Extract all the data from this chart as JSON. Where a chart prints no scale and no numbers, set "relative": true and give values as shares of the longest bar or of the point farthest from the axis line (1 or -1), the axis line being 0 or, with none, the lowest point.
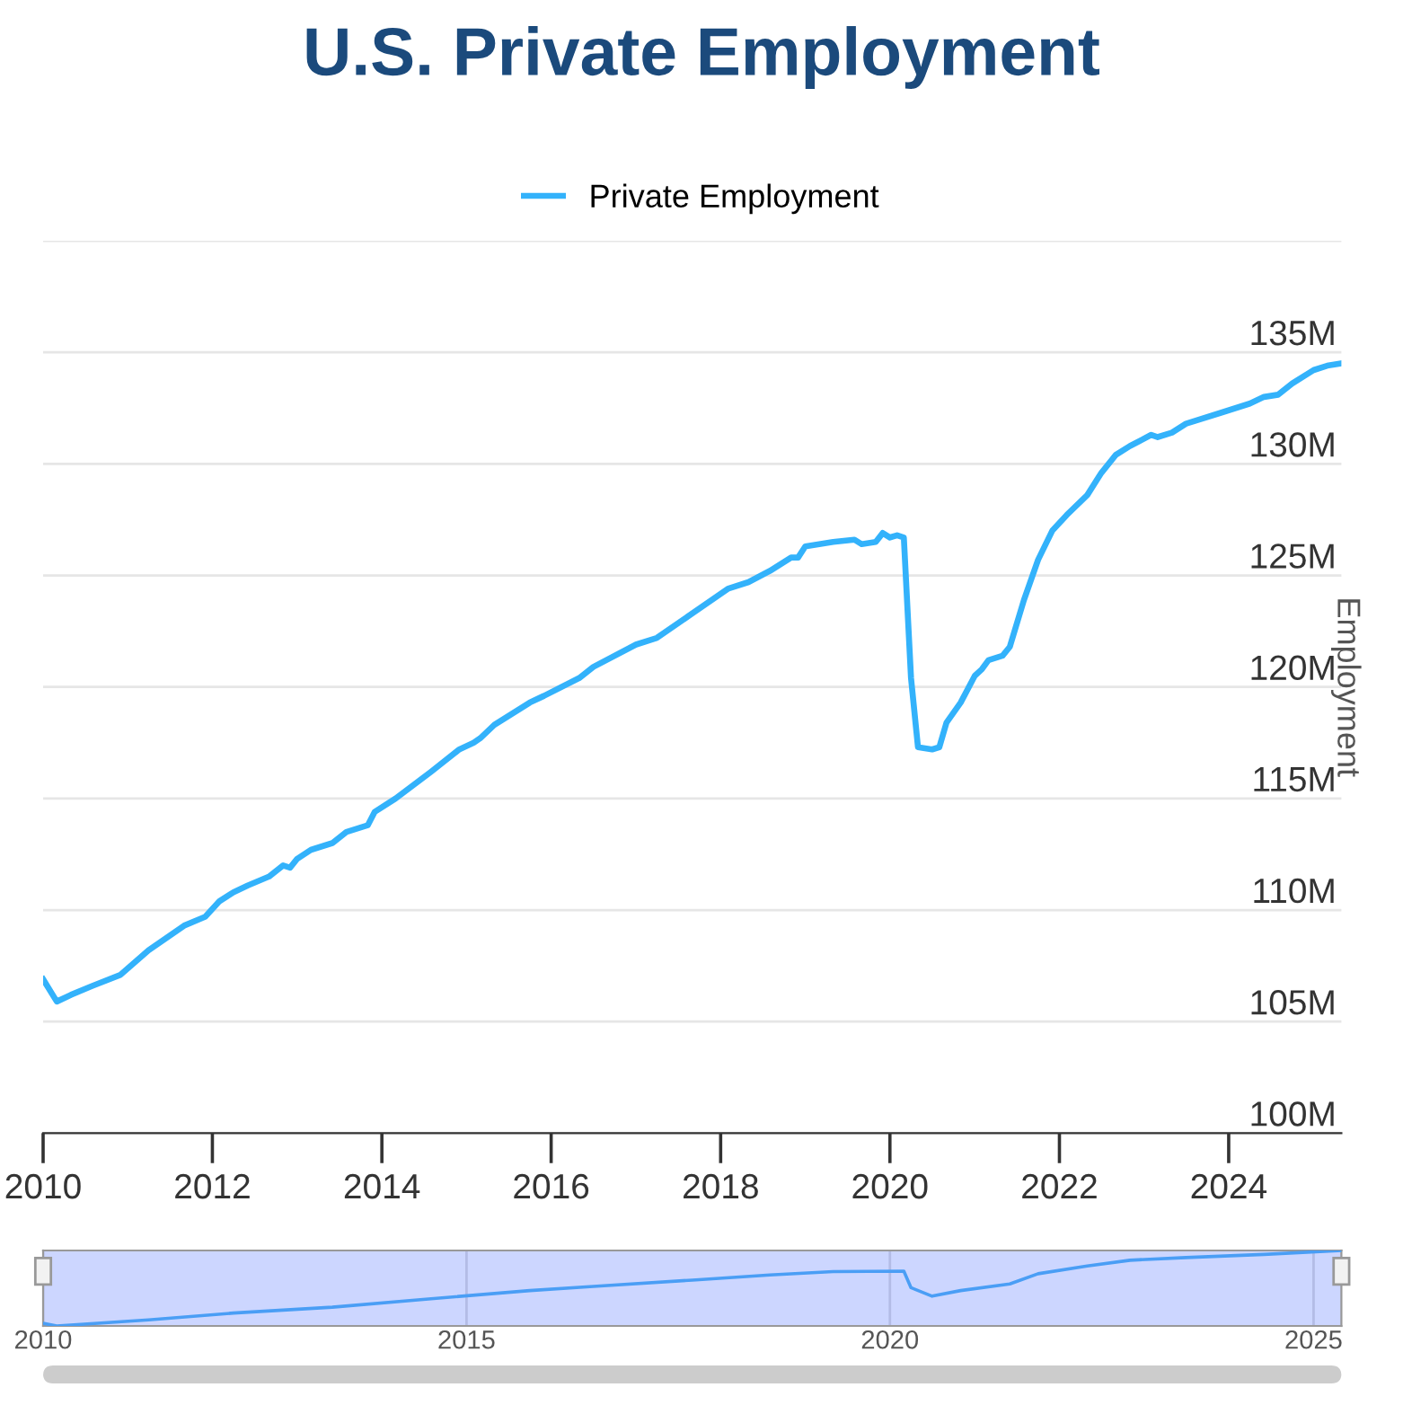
{
  "chart_data": [
    {
      "type": "line",
      "title": "U.S. Private Employment",
      "ylabel": "Employment",
      "legend": "top",
      "grid": "y",
      "marker": "none",
      "line_style": "solid",
      "xlim": [
        "2010-01",
        "2025-05"
      ],
      "xticks": [
        "2010",
        "2012",
        "2014",
        "2016",
        "2018",
        "2020",
        "2022",
        "2024"
      ],
      "ylim": [
        100,
        140
      ],
      "yticks": [
        {
          "value": 100,
          "label": "100M"
        },
        {
          "value": 105,
          "label": "105M"
        },
        {
          "value": 110,
          "label": "110M"
        },
        {
          "value": 115,
          "label": "115M"
        },
        {
          "value": 120,
          "label": "120M"
        },
        {
          "value": 125,
          "label": "125M"
        },
        {
          "value": 130,
          "label": "130M"
        },
        {
          "value": 135,
          "label": "135M"
        },
        {
          "value": 140,
          "label": null
        }
      ],
      "series": [
        {
          "name": "Private Employment",
          "color": "#33b2fb",
          "x": [
            "2010-01",
            "2010-03",
            "2010-05",
            "2010-08",
            "2010-12",
            "2011-04",
            "2011-09",
            "2011-12",
            "2012-02",
            "2012-04",
            "2012-06",
            "2012-09",
            "2012-11",
            "2012-12",
            "2013-01",
            "2013-03",
            "2013-06",
            "2013-08",
            "2013-11",
            "2013-12",
            "2014-03",
            "2014-08",
            "2014-12",
            "2015-02",
            "2015-03",
            "2015-05",
            "2015-10",
            "2015-12",
            "2016-05",
            "2016-07",
            "2017-01",
            "2017-04",
            "2017-09",
            "2018-02",
            "2018-05",
            "2018-08",
            "2018-11",
            "2018-12",
            "2019-01",
            "2019-05",
            "2019-08",
            "2019-09",
            "2019-11",
            "2019-12",
            "2020-01",
            "2020-02",
            "2020-03",
            "2020-04",
            "2020-05",
            "2020-07",
            "2020-08",
            "2020-09",
            "2020-11",
            "2021-01",
            "2021-02",
            "2021-03",
            "2021-05",
            "2021-06",
            "2021-08",
            "2021-10",
            "2021-12",
            "2022-02",
            "2022-05",
            "2022-07",
            "2022-09",
            "2022-11",
            "2023-02",
            "2023-03",
            "2023-05",
            "2023-07",
            "2023-12",
            "2024-04",
            "2024-06",
            "2024-08",
            "2024-10",
            "2025-01",
            "2025-03",
            "2025-05"
          ],
          "values": [
            106.9,
            105.9,
            106.2,
            106.6,
            107.1,
            108.2,
            109.3,
            109.7,
            110.4,
            110.8,
            111.1,
            111.5,
            112.0,
            111.9,
            112.3,
            112.7,
            113.0,
            113.5,
            113.8,
            114.4,
            115.0,
            116.2,
            117.2,
            117.5,
            117.7,
            118.3,
            119.3,
            119.6,
            120.4,
            120.9,
            121.9,
            122.2,
            123.3,
            124.4,
            124.7,
            125.2,
            125.8,
            125.8,
            126.3,
            126.5,
            126.6,
            126.4,
            126.5,
            126.9,
            126.7,
            126.8,
            126.7,
            120.4,
            117.3,
            117.2,
            117.3,
            118.4,
            119.3,
            120.5,
            120.8,
            121.2,
            121.4,
            121.8,
            123.9,
            125.7,
            127.0,
            127.7,
            128.6,
            129.6,
            130.4,
            130.8,
            131.3,
            131.2,
            131.4,
            131.8,
            132.3,
            132.7,
            133.0,
            133.1,
            133.6,
            134.2,
            134.4,
            134.5
          ]
        }
      ]
    },
    {
      "type": "line",
      "relative": true,
      "tick_labels": "x",
      "grid": "x",
      "xlim": [
        "2010-01",
        "2025-05"
      ],
      "xticks": [
        "2010",
        "2015",
        "2020",
        "2025"
      ],
      "series": [
        {
          "color": "#4a9ef5",
          "x": [
            "2010-01",
            "2010-03",
            "2011-04",
            "2012-04",
            "2013-06",
            "2014-08",
            "2015-10",
            "2016-07",
            "2017-09",
            "2018-08",
            "2019-05",
            "2020-03",
            "2020-04",
            "2020-07",
            "2020-11",
            "2021-06",
            "2021-10",
            "2022-05",
            "2022-11",
            "2023-07",
            "2024-06",
            "2025-05"
          ],
          "values": [
            0.035,
            0,
            0.08,
            0.171,
            0.248,
            0.36,
            0.469,
            0.524,
            0.608,
            0.675,
            0.72,
            0.727,
            0.507,
            0.395,
            0.469,
            0.556,
            0.692,
            0.794,
            0.871,
            0.906,
            0.948,
            1
          ]
        }
      ]
    }
  ]
}
